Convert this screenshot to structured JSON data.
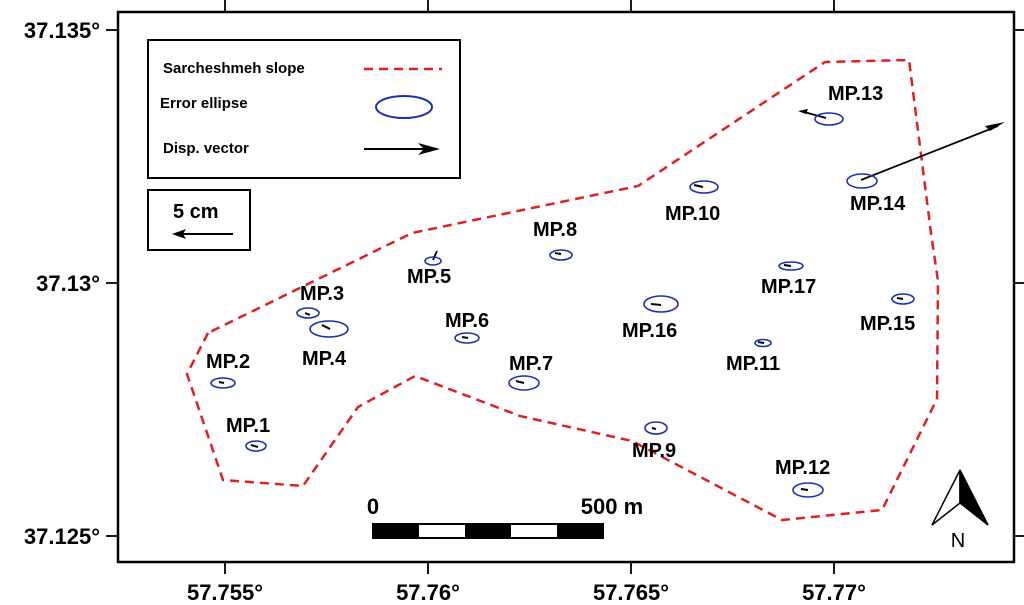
{
  "legend": {
    "slope_label": "Sarcheshmeh slope",
    "ellipse_label": "Error ellipse",
    "vector_label": "Disp. vector",
    "slope_color": "#e02020",
    "ellipse_color": "#1a2fb0"
  },
  "vector_scale": {
    "label": "5 cm"
  },
  "scale_bar": {
    "start_label": "0",
    "end_label": "500 m"
  },
  "north_arrow": {
    "label": "N"
  },
  "axes": {
    "x_ticks": [
      "57.755°",
      "57.76°",
      "57.765°",
      "57.77°"
    ],
    "y_ticks": [
      "37.135°",
      "37.13°",
      "37.125°"
    ],
    "x_values": [
      57.755,
      57.76,
      57.765,
      57.77
    ],
    "y_values": [
      37.135,
      37.13,
      37.125
    ]
  },
  "points": [
    {
      "name": "MP.1",
      "lon": 57.7558,
      "lat": 37.12676
    },
    {
      "name": "MP.2",
      "lon": 57.755,
      "lat": 37.12803
    },
    {
      "name": "MP.3",
      "lon": 57.7571,
      "lat": 37.12941
    },
    {
      "name": "MP.4",
      "lon": 57.7576,
      "lat": 37.1291
    },
    {
      "name": "MP.5",
      "lon": 57.7601,
      "lat": 37.13046
    },
    {
      "name": "MP.6",
      "lon": 57.761,
      "lat": 37.12892
    },
    {
      "name": "MP.7",
      "lon": 57.7624,
      "lat": 37.12803
    },
    {
      "name": "MP.8",
      "lon": 57.7633,
      "lat": 37.13057
    },
    {
      "name": "MP.9",
      "lon": 57.7656,
      "lat": 37.12712
    },
    {
      "name": "MP.10",
      "lon": 57.7668,
      "lat": 37.13193
    },
    {
      "name": "MP.11",
      "lon": 57.7683,
      "lat": 37.12883
    },
    {
      "name": "MP.12",
      "lon": 57.7694,
      "lat": 37.12592
    },
    {
      "name": "MP.13",
      "lon": 57.7699,
      "lat": 37.13326
    },
    {
      "name": "MP.14",
      "lon": 57.7707,
      "lat": 37.13204
    },
    {
      "name": "MP.15",
      "lon": 57.7718,
      "lat": 37.12974
    },
    {
      "name": "MP.16",
      "lon": 57.7658,
      "lat": 37.12961
    },
    {
      "name": "MP.17",
      "lon": 57.769,
      "lat": 37.13037
    }
  ]
}
